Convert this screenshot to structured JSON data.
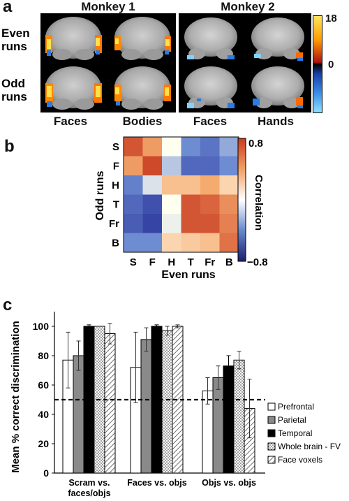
{
  "panel_a": {
    "letter": "a",
    "monkey1": "Monkey 1",
    "monkey2": "Monkey 2",
    "row_even": [
      "Even",
      "runs"
    ],
    "row_odd": [
      "Odd",
      "runs"
    ],
    "cols": [
      "Faces",
      "Bodies",
      "Faces",
      "Hands"
    ],
    "colorbar": {
      "max": "18",
      "zero": "0"
    }
  },
  "panel_b": {
    "letter": "b",
    "row_labels": [
      "S",
      "F",
      "H",
      "T",
      "Fr",
      "B"
    ],
    "col_labels": [
      "S",
      "F",
      "H",
      "T",
      "Fr",
      "B"
    ],
    "xlabel": "Even runs",
    "ylabel": "Odd runs",
    "colorbar_label": "Correlation",
    "colorbar_max": "0.8",
    "colorbar_min": "−0.8",
    "matrix": [
      [
        0.7,
        0.45,
        0.0,
        -0.4,
        -0.5,
        -0.3
      ],
      [
        0.45,
        0.75,
        -0.2,
        -0.55,
        -0.55,
        -0.4
      ],
      [
        -0.45,
        -0.1,
        0.3,
        0.3,
        0.4,
        0.2
      ],
      [
        -0.55,
        -0.65,
        0.0,
        0.7,
        0.65,
        0.5
      ],
      [
        -0.6,
        -0.7,
        -0.05,
        0.7,
        0.7,
        0.55
      ],
      [
        -0.4,
        -0.4,
        0.2,
        0.25,
        0.3,
        0.6
      ]
    ]
  },
  "panel_c": {
    "letter": "c"
  },
  "chart_data": {
    "type": "bar",
    "ylabel": "Mean % correct discrimination",
    "ylim": [
      0,
      110
    ],
    "yticks": [
      0,
      20,
      40,
      60,
      80,
      100
    ],
    "categories": [
      "Scram vs. faces/objs",
      "Faces vs. objs",
      "Objs vs. objs"
    ],
    "category_lines": [
      [
        "Scram vs.",
        "faces/objs"
      ],
      [
        "Faces vs. objs"
      ],
      [
        "Objs vs. objs"
      ]
    ],
    "chance_level": 50,
    "series": [
      {
        "name": "Prefrontal",
        "fill": "#ffffff",
        "pattern": "none",
        "values": [
          77,
          72,
          56
        ],
        "err": [
          19,
          24,
          9
        ]
      },
      {
        "name": "Parietal",
        "fill": "#8a8a8a",
        "pattern": "none",
        "values": [
          80,
          91,
          65
        ],
        "err": [
          10,
          8,
          8
        ]
      },
      {
        "name": "Temporal",
        "fill": "#000000",
        "pattern": "none",
        "values": [
          100,
          100,
          73
        ],
        "err": [
          1,
          1,
          7
        ]
      },
      {
        "name": "Whole brain - FV",
        "fill": "#ffffff",
        "pattern": "dots",
        "values": [
          100,
          97,
          77
        ],
        "err": [
          0,
          3,
          6
        ]
      },
      {
        "name": "Face voxels",
        "fill": "#ffffff",
        "pattern": "hatch",
        "values": [
          95,
          100,
          44
        ],
        "err": [
          7,
          1,
          20
        ]
      }
    ],
    "legend_position": "lower-right"
  }
}
